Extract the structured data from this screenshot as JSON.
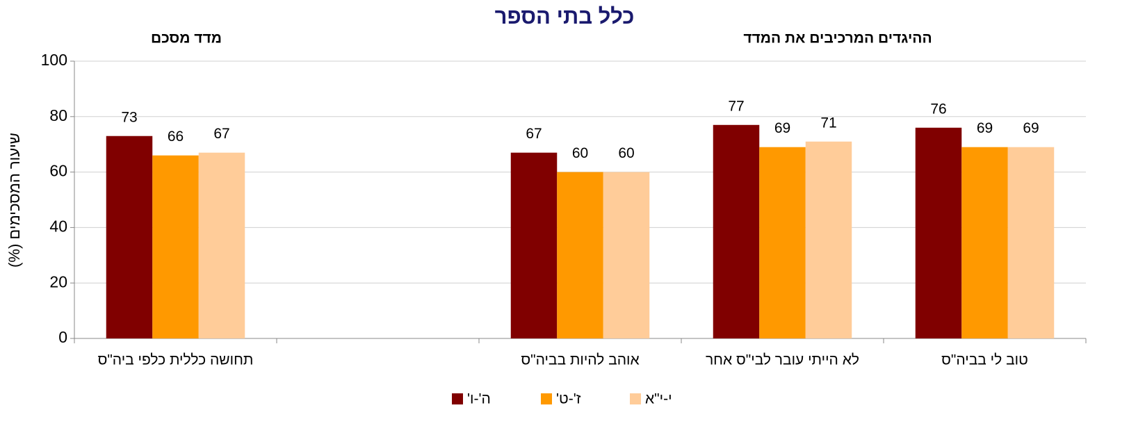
{
  "chart_data": {
    "type": "bar",
    "title": "כלל בתי הספר",
    "annotations": [
      "מדד מסכם",
      "ההיגדים המרכיבים את המדד"
    ],
    "y_label": "שיעור המסכימים (%)",
    "categories": [
      "תחושה כללית כלפי ביה\"ס",
      null,
      "אוהב להיות בביה\"ס",
      "לא הייתי עובר לבי\"ס אחר",
      "טוב לי בביה\"ס"
    ],
    "series": [
      {
        "name": "ה'-ו'",
        "color": "#800000",
        "values": [
          73,
          null,
          67,
          77,
          76
        ]
      },
      {
        "name": "ז'-ט'",
        "color": "#ff9900",
        "values": [
          66,
          null,
          60,
          69,
          69
        ]
      },
      {
        "name": "י-י\"א",
        "color": "#ffcc99",
        "values": [
          67,
          null,
          60,
          71,
          69
        ]
      }
    ],
    "ylim": [
      0,
      100
    ],
    "yticks": [
      0,
      20,
      40,
      60,
      80,
      100
    ],
    "grid": true,
    "legend": "bottom"
  }
}
